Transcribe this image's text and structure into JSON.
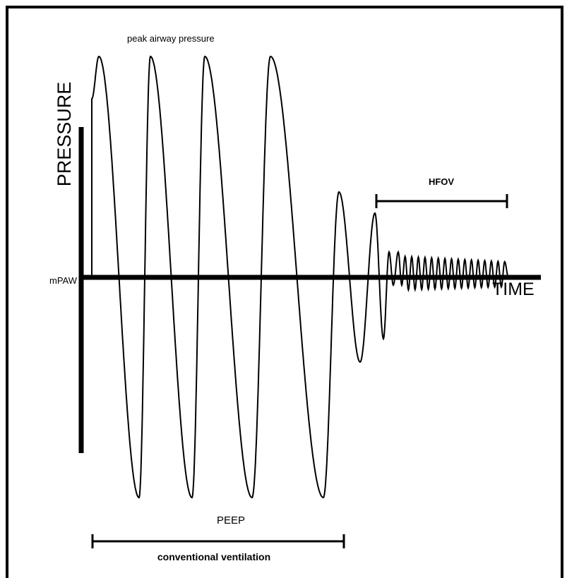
{
  "labels": {
    "peak": "peak airway pressure",
    "pressure": "PRESSURE",
    "mpaw": "mPAW",
    "time": "TIME",
    "hfov": "HFOV",
    "peep": "PEEP",
    "conventional": "conventional ventilation"
  }
}
